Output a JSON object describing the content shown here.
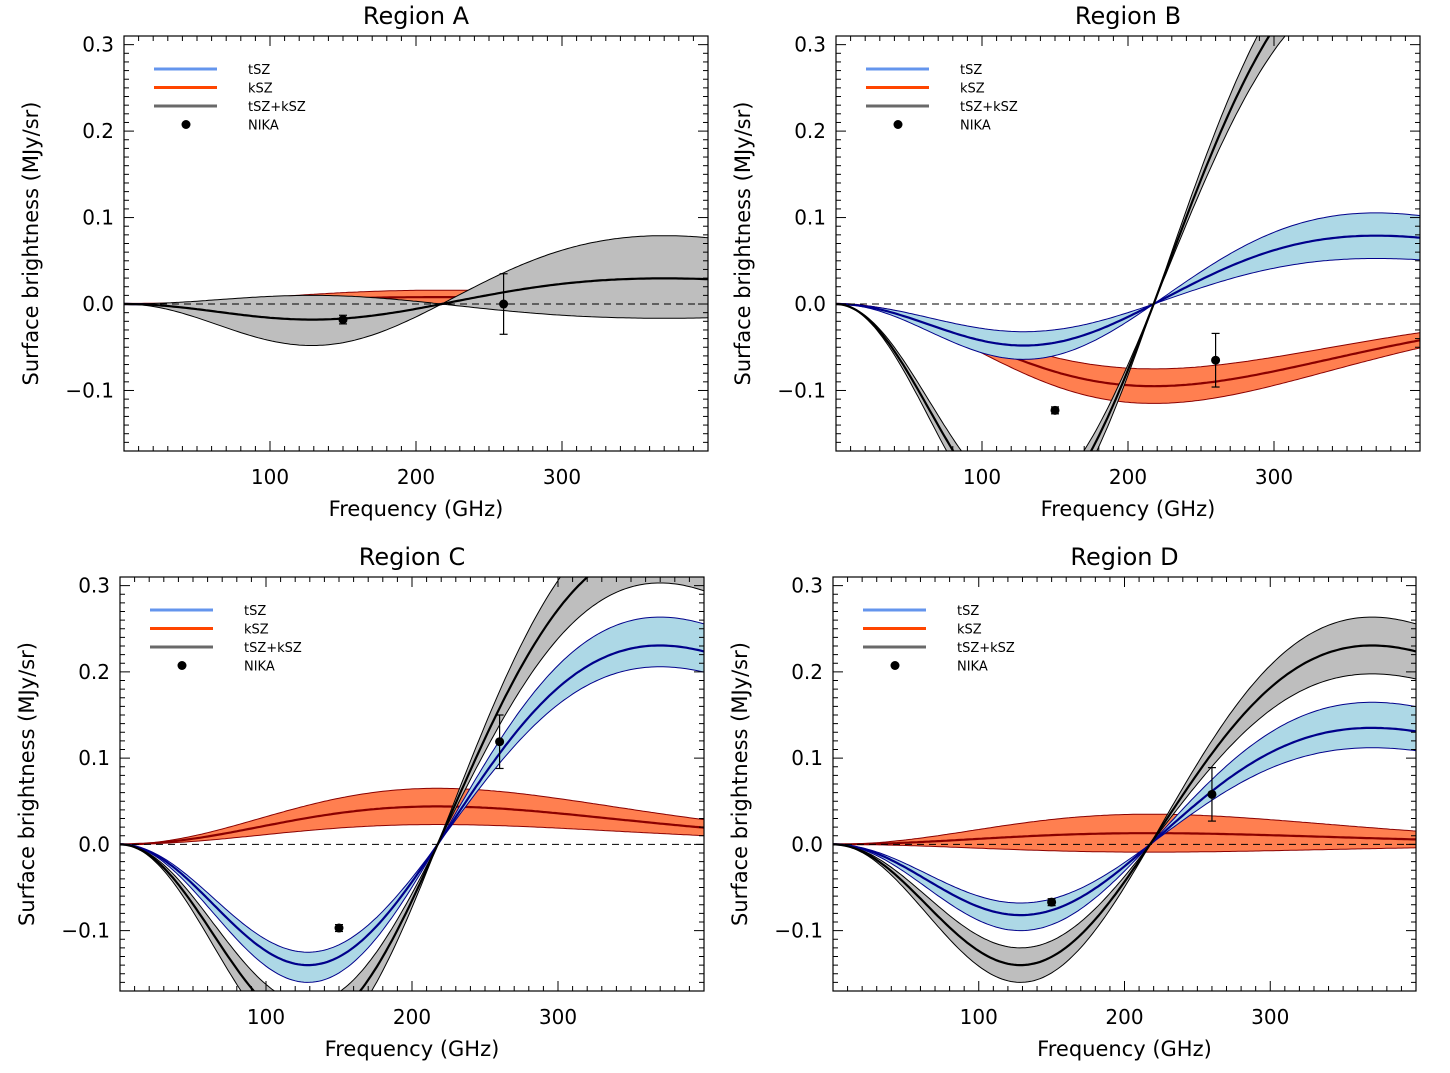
{
  "colors": {
    "tsz_legend": "#6495ed",
    "tsz_band": "#add8e6",
    "tsz_line": "#00008b",
    "ksz_legend": "#ff4500",
    "ksz_band": "#ff7f50",
    "ksz_line": "#8b0000",
    "total_legend": "#696969",
    "total_band": "#bebebe",
    "total_line": "#000000"
  },
  "legend": [
    "tSZ",
    "kSZ",
    "tSZ+kSZ",
    "NIKA"
  ],
  "chart_data": [
    {
      "type": "line",
      "title": "Region A",
      "xlabel": "Frequency (GHz)",
      "ylabel": "Surface brightness (MJy/sr)",
      "xlim": [
        0,
        400
      ],
      "ylim": [
        -0.17,
        0.31
      ],
      "xticks": [
        100,
        200,
        300
      ],
      "yticks": [
        -0.1,
        0.0,
        0.1,
        0.2,
        0.3
      ],
      "ytick_labels": [
        "−0.1",
        "0.0",
        "0.1",
        "0.2",
        "0.3"
      ],
      "params": {
        "tsz": [
          -0.012,
          -0.027,
          -0.002
        ],
        "ksz": [
          0.008,
          0.0,
          0.016
        ],
        "total": [
          -0.009,
          -0.024,
          0.005
        ]
      },
      "nika": [
        {
          "x": 150,
          "y": -0.018,
          "err": 0.005
        },
        {
          "x": 260,
          "y": 0.0,
          "err": 0.035
        }
      ]
    },
    {
      "type": "line",
      "title": "Region B",
      "xlabel": "Frequency (GHz)",
      "ylabel": "Surface brightness (MJy/sr)",
      "xlim": [
        0,
        400
      ],
      "ylim": [
        -0.17,
        0.31
      ],
      "xticks": [
        100,
        200,
        300
      ],
      "yticks": [
        -0.1,
        0.0,
        0.1,
        0.2,
        0.3
      ],
      "ytick_labels": [
        "−0.1",
        "0.0",
        "0.1",
        "0.2",
        "0.3"
      ],
      "params": {
        "tsz": [
          -0.048,
          -0.032,
          -0.064
        ],
        "ksz": [
          -0.095,
          -0.075,
          -0.115
        ],
        "total": [
          -0.123,
          -0.113,
          -0.133
        ]
      },
      "nika": [
        {
          "x": 150,
          "y": -0.123,
          "err": 0.004
        },
        {
          "x": 260,
          "y": -0.065,
          "err": 0.031
        }
      ]
    },
    {
      "type": "line",
      "title": "Region C",
      "xlabel": "Frequency (GHz)",
      "ylabel": "Surface brightness (MJy/sr)",
      "xlim": [
        0,
        400
      ],
      "ylim": [
        -0.17,
        0.31
      ],
      "xticks": [
        100,
        200,
        300
      ],
      "yticks": [
        -0.1,
        0.0,
        0.1,
        0.2,
        0.3
      ],
      "ytick_labels": [
        "−0.1",
        "0.0",
        "0.1",
        "0.2",
        "0.3"
      ],
      "params": {
        "tsz": [
          -0.14,
          -0.125,
          -0.16
        ],
        "ksz": [
          0.044,
          0.023,
          0.065
        ],
        "total": [
          -0.105,
          -0.092,
          -0.118
        ]
      },
      "nika": [
        {
          "x": 150,
          "y": -0.097,
          "err": 0.004
        },
        {
          "x": 260,
          "y": 0.119,
          "err": 0.031
        }
      ]
    },
    {
      "type": "line",
      "title": "Region D",
      "xlabel": "Frequency (GHz)",
      "ylabel": "Surface brightness (MJy/sr)",
      "xlim": [
        0,
        400
      ],
      "ylim": [
        -0.17,
        0.31
      ],
      "xticks": [
        100,
        200,
        300
      ],
      "yticks": [
        -0.1,
        0.0,
        0.1,
        0.2,
        0.3
      ],
      "ytick_labels": [
        "−0.1",
        "0.0",
        "0.1",
        "0.2",
        "0.3"
      ],
      "params": {
        "tsz": [
          -0.082,
          -0.068,
          -0.1
        ],
        "ksz": [
          0.013,
          -0.009,
          0.035
        ],
        "total": [
          -0.07,
          -0.06,
          -0.08
        ]
      },
      "nika": [
        {
          "x": 150,
          "y": -0.067,
          "err": 0.004
        },
        {
          "x": 260,
          "y": 0.058,
          "err": 0.031
        }
      ]
    }
  ]
}
